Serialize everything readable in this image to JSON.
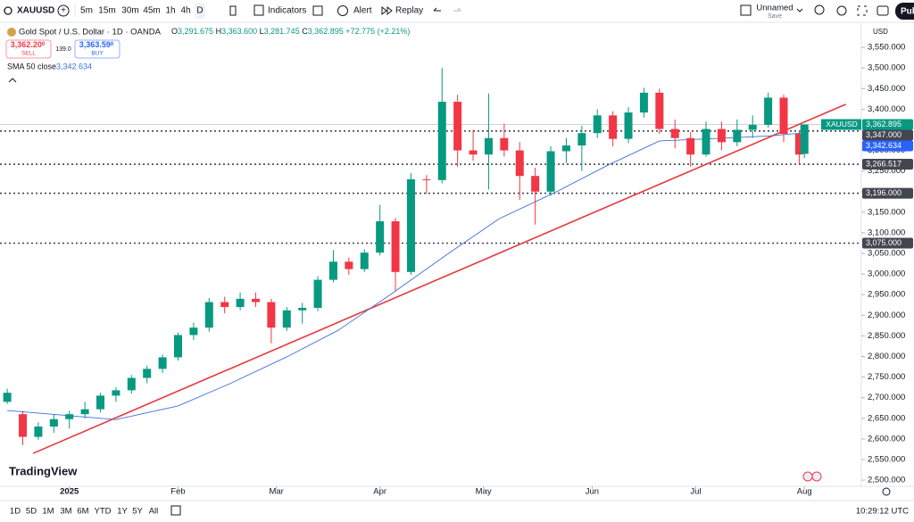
{
  "toolbar": {
    "symbol": "XAUUSD",
    "intervals": [
      "5m",
      "15m",
      "30m",
      "45m",
      "1h",
      "4h",
      "D"
    ],
    "indicators": "Indicators",
    "alert": "Alert",
    "replay": "Replay",
    "layout_name": "Unnamed",
    "save": "Save",
    "publish": "Pub"
  },
  "legend": {
    "title": "Gold Spot / U.S. Dollar · 1D · OANDA",
    "o_key": "O",
    "open": "3,291.675",
    "h_key": "H",
    "high": "3,363.600",
    "l_key": "L",
    "low": "3,281.745",
    "c_key": "C",
    "close": "3,362.895",
    "change": "+72.775 (+2.21%)",
    "sell_price": "3,362.20",
    "sell_sup": "0",
    "sell": "SELL",
    "spread": "139.0",
    "buy_price": "3,363.59",
    "buy_sup": "0",
    "buy": "BUY"
  },
  "currency": "USD",
  "branding": "TradingView",
  "chart_data": {
    "type": "candlestick",
    "up_color": "#089981",
    "down_color": "#f23645",
    "x": [
      0,
      3,
      6,
      9,
      12,
      15,
      18,
      21,
      24,
      27,
      30,
      33,
      36,
      39,
      42,
      45,
      48,
      51,
      54,
      57,
      60,
      63,
      66,
      69,
      72,
      75,
      78,
      81,
      84,
      87,
      90,
      93,
      96,
      99,
      102,
      105,
      108,
      111,
      114,
      117,
      120,
      123,
      126,
      129,
      132,
      135,
      138,
      141,
      144,
      147,
      150,
      153,
      154
    ],
    "candles": [
      [
        2690,
        2722,
        2685,
        2712
      ],
      [
        2660,
        2668,
        2585,
        2605
      ],
      [
        2605,
        2640,
        2598,
        2630
      ],
      [
        2630,
        2660,
        2615,
        2648
      ],
      [
        2648,
        2668,
        2625,
        2660
      ],
      [
        2660,
        2690,
        2650,
        2672
      ],
      [
        2672,
        2712,
        2664,
        2705
      ],
      [
        2705,
        2725,
        2690,
        2718
      ],
      [
        2718,
        2755,
        2710,
        2748
      ],
      [
        2748,
        2778,
        2735,
        2770
      ],
      [
        2770,
        2805,
        2760,
        2798
      ],
      [
        2798,
        2858,
        2790,
        2852
      ],
      [
        2852,
        2882,
        2840,
        2870
      ],
      [
        2870,
        2942,
        2860,
        2932
      ],
      [
        2932,
        2945,
        2905,
        2920
      ],
      [
        2920,
        2955,
        2912,
        2940
      ],
      [
        2940,
        2955,
        2920,
        2932
      ],
      [
        2932,
        2940,
        2832,
        2870
      ],
      [
        2870,
        2920,
        2862,
        2912
      ],
      [
        2912,
        2930,
        2880,
        2918
      ],
      [
        2918,
        2995,
        2910,
        2986
      ],
      [
        2986,
        3058,
        2980,
        3030
      ],
      [
        3030,
        3040,
        2998,
        3012
      ],
      [
        3012,
        3060,
        3005,
        3052
      ],
      [
        3052,
        3168,
        3045,
        3128
      ],
      [
        3128,
        3136,
        2958,
        3005
      ],
      [
        3005,
        3245,
        2998,
        3230
      ],
      [
        3230,
        3240,
        3195,
        3228
      ],
      [
        3228,
        3500,
        3220,
        3418
      ],
      [
        3418,
        3435,
        3260,
        3300
      ],
      [
        3300,
        3350,
        3275,
        3290
      ],
      [
        3290,
        3438,
        3205,
        3330
      ],
      [
        3330,
        3365,
        3285,
        3300
      ],
      [
        3300,
        3320,
        3180,
        3238
      ],
      [
        3238,
        3258,
        3120,
        3200
      ],
      [
        3200,
        3310,
        3190,
        3298
      ],
      [
        3298,
        3330,
        3270,
        3312
      ],
      [
        3312,
        3360,
        3250,
        3342
      ],
      [
        3342,
        3400,
        3330,
        3385
      ],
      [
        3385,
        3395,
        3310,
        3328
      ],
      [
        3328,
        3405,
        3318,
        3392
      ],
      [
        3392,
        3452,
        3380,
        3440
      ],
      [
        3440,
        3450,
        3340,
        3352
      ],
      [
        3352,
        3375,
        3305,
        3330
      ],
      [
        3330,
        3345,
        3260,
        3290
      ],
      [
        3290,
        3370,
        3285,
        3352
      ],
      [
        3352,
        3370,
        3300,
        3320
      ],
      [
        3320,
        3375,
        3310,
        3350
      ],
      [
        3350,
        3385,
        3330,
        3362
      ],
      [
        3362,
        3440,
        3355,
        3428
      ],
      [
        3428,
        3435,
        3320,
        3340
      ],
      [
        3340,
        3348,
        3268,
        3290
      ],
      [
        3291.675,
        3363.6,
        3281.745,
        3362.895
      ]
    ],
    "sma": {
      "name": "SMA 50 close",
      "color": "#3d6fd9",
      "last_label": "3,342.634",
      "x": [
        0,
        21,
        33,
        43,
        54,
        64,
        74,
        85,
        95,
        106,
        116,
        126,
        137,
        147,
        154
      ],
      "values": [
        2669,
        2647,
        2680,
        2734,
        2799,
        2864,
        2950,
        3048,
        3134,
        3199,
        3264,
        3323,
        3329,
        3335,
        3342.634
      ]
    },
    "trendline": {
      "color": "#e8383d",
      "x": [
        5,
        162
      ],
      "values": [
        2565,
        3412
      ]
    },
    "levels": [
      {
        "value": 3347,
        "label": "3,347.000"
      },
      {
        "value": 3266.517,
        "label": "3,266.517"
      },
      {
        "value": 3196,
        "label": "3,196.000"
      },
      {
        "value": 3075,
        "label": "3,075.000"
      }
    ],
    "last_price": {
      "name": "XAUUSD",
      "value": 3362.895,
      "label": "3,362.895"
    },
    "xlim": [
      -1.4,
      165
    ],
    "xticks": [
      {
        "value": 12,
        "label": "2025"
      },
      {
        "value": 33,
        "label": "Feb"
      },
      {
        "value": 52,
        "label": "Mar"
      },
      {
        "value": 72,
        "label": "Apr"
      },
      {
        "value": 92,
        "label": "May"
      },
      {
        "value": 113,
        "label": "Jun"
      },
      {
        "value": 133,
        "label": "Jul"
      },
      {
        "value": 154,
        "label": "Aug"
      }
    ],
    "ylim": [
      2485,
      3600
    ],
    "yticks": [
      {
        "value": 2500,
        "label": "2,500.000"
      },
      {
        "value": 2550,
        "label": "2,550.000"
      },
      {
        "value": 2600,
        "label": "2,600.000"
      },
      {
        "value": 2650,
        "label": "2,650.000"
      },
      {
        "value": 2700,
        "label": "2,700.000"
      },
      {
        "value": 2750,
        "label": "2,750.000"
      },
      {
        "value": 2800,
        "label": "2,800.000"
      },
      {
        "value": 2850,
        "label": "2,850.000"
      },
      {
        "value": 2900,
        "label": "2,900.000"
      },
      {
        "value": 2950,
        "label": "2,950.000"
      },
      {
        "value": 3000,
        "label": "3,000.000"
      },
      {
        "value": 3050,
        "label": "3,050.000"
      },
      {
        "value": 3100,
        "label": "3,100.000"
      },
      {
        "value": 3150,
        "label": "3,150.000"
      },
      {
        "value": 3200,
        "label": "3,200.000"
      },
      {
        "value": 3250,
        "label": "3,250.000"
      },
      {
        "value": 3300,
        "label": "3,300.000"
      },
      {
        "value": 3350,
        "label": "3,350.000"
      },
      {
        "value": 3400,
        "label": "3,400.000"
      },
      {
        "value": 3450,
        "label": "3,450.000"
      },
      {
        "value": 3500,
        "label": "3,500.000"
      },
      {
        "value": 3550,
        "label": "3,550.000"
      }
    ]
  },
  "bottom_bar": {
    "ranges": [
      "1D",
      "5D",
      "1M",
      "3M",
      "6M",
      "YTD",
      "1Y",
      "5Y",
      "All"
    ],
    "clock": "10:29:12 UTC"
  }
}
